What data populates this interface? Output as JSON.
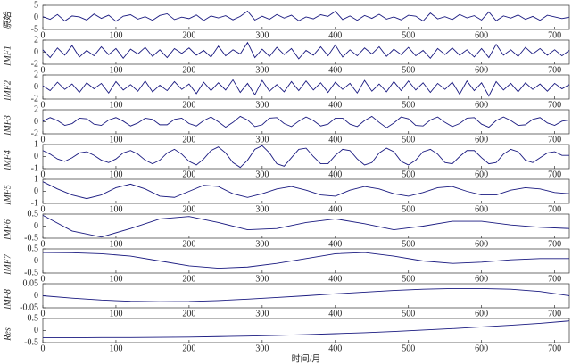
{
  "chart_data": [
    {
      "type": "line",
      "ylabel": "原始",
      "color": "#1a1a80",
      "xlim": [
        0,
        720
      ],
      "xticks": [
        0,
        100,
        200,
        300,
        400,
        500,
        600,
        700
      ],
      "ylim": [
        -5,
        5
      ],
      "yticks": [
        -5,
        0,
        5
      ],
      "x": [
        0,
        10,
        20,
        30,
        40,
        50,
        60,
        70,
        80,
        90,
        100,
        110,
        120,
        130,
        140,
        150,
        160,
        170,
        180,
        190,
        200,
        210,
        220,
        230,
        240,
        250,
        260,
        270,
        280,
        290,
        300,
        310,
        320,
        330,
        340,
        350,
        360,
        370,
        380,
        390,
        400,
        410,
        420,
        430,
        440,
        450,
        460,
        470,
        480,
        490,
        500,
        510,
        520,
        530,
        540,
        550,
        560,
        570,
        580,
        590,
        600,
        610,
        620,
        630,
        640,
        650,
        660,
        670,
        680,
        690,
        700,
        710,
        720
      ],
      "values": [
        0.3,
        -0.8,
        1.2,
        -1.5,
        0.6,
        0.2,
        -1.1,
        1.4,
        -0.4,
        0.9,
        -1.6,
        0.5,
        1.1,
        -0.7,
        0.3,
        -1.2,
        0.8,
        1.5,
        -0.9,
        0.1,
        -0.5,
        1.0,
        -1.3,
        0.6,
        -0.2,
        0.7,
        -1.0,
        0.4,
        2.6,
        -1.1,
        0.5,
        -0.8,
        1.2,
        -0.3,
        0.9,
        -1.4,
        0.2,
        -0.6,
        1.1,
        0.4,
        2.5,
        -0.9,
        0.6,
        -1.2,
        0.8,
        -0.4,
        1.3,
        -0.7,
        0.2,
        -1.0,
        0.9,
        0.5,
        -1.5,
        1.8,
        -0.6,
        0.3,
        -0.9,
        1.2,
        -0.2,
        0.7,
        -1.1,
        2.3,
        -1.4,
        0.6,
        -0.3,
        1.0,
        -0.8,
        0.4,
        -1.2,
        0.9,
        0.2,
        -0.5,
        0.1
      ]
    },
    {
      "type": "line",
      "ylabel": "IMF1",
      "color": "#1a1a80",
      "xlim": [
        0,
        720
      ],
      "xticks": [
        0,
        100,
        200,
        300,
        400,
        500,
        600,
        700
      ],
      "ylim": [
        -2,
        2
      ],
      "yticks": [
        -2,
        0,
        2
      ],
      "x": [
        0,
        10,
        20,
        30,
        40,
        50,
        60,
        70,
        80,
        90,
        100,
        110,
        120,
        130,
        140,
        150,
        160,
        170,
        180,
        190,
        200,
        210,
        220,
        230,
        240,
        250,
        260,
        270,
        280,
        290,
        300,
        310,
        320,
        330,
        340,
        350,
        360,
        370,
        380,
        390,
        400,
        410,
        420,
        430,
        440,
        450,
        460,
        470,
        480,
        490,
        500,
        510,
        520,
        530,
        540,
        550,
        560,
        570,
        580,
        590,
        600,
        610,
        620,
        630,
        640,
        650,
        660,
        670,
        680,
        690,
        700,
        710,
        720
      ],
      "values": [
        0.4,
        -0.9,
        0.7,
        -0.5,
        1.1,
        -0.8,
        0.3,
        -0.6,
        0.9,
        -0.4,
        0.6,
        -1.0,
        0.5,
        -0.3,
        0.8,
        -0.7,
        0.4,
        -0.9,
        0.6,
        -0.2,
        0.7,
        -0.5,
        0.3,
        -0.8,
        1.0,
        -0.6,
        0.4,
        -0.3,
        1.6,
        -0.9,
        0.5,
        -0.7,
        0.8,
        -0.4,
        0.6,
        -1.1,
        0.3,
        -0.5,
        0.9,
        -0.6,
        1.2,
        -0.8,
        0.4,
        -0.6,
        0.7,
        -0.3,
        0.9,
        -0.7,
        0.5,
        -0.4,
        0.8,
        -0.6,
        0.3,
        -1.0,
        0.6,
        -0.4,
        0.7,
        -0.5,
        0.4,
        -0.8,
        0.6,
        -0.9,
        1.3,
        -0.5,
        0.4,
        -0.7,
        0.8,
        -0.3,
        0.6,
        -0.5,
        0.4,
        -0.6,
        0.3
      ]
    },
    {
      "type": "line",
      "ylabel": "IMF2",
      "color": "#1a1a80",
      "xlim": [
        0,
        720
      ],
      "xticks": [
        0,
        100,
        200,
        300,
        400,
        500,
        600,
        700
      ],
      "ylim": [
        -2,
        2
      ],
      "yticks": [
        -2,
        0,
        2
      ],
      "x": [
        0,
        10,
        20,
        30,
        40,
        50,
        60,
        70,
        80,
        90,
        100,
        110,
        120,
        130,
        140,
        150,
        160,
        170,
        180,
        190,
        200,
        210,
        220,
        230,
        240,
        250,
        260,
        270,
        280,
        290,
        300,
        310,
        320,
        330,
        340,
        350,
        360,
        370,
        380,
        390,
        400,
        410,
        420,
        430,
        440,
        450,
        460,
        470,
        480,
        490,
        500,
        510,
        520,
        530,
        540,
        550,
        560,
        570,
        580,
        590,
        600,
        610,
        620,
        630,
        640,
        650,
        660,
        670,
        680,
        690,
        700,
        710,
        720
      ],
      "values": [
        0.2,
        -0.6,
        0.8,
        -0.4,
        0.5,
        -0.9,
        0.7,
        -0.3,
        0.6,
        -1.0,
        0.9,
        -0.5,
        0.4,
        -0.7,
        1.0,
        -0.8,
        0.3,
        -0.6,
        0.9,
        -0.4,
        0.5,
        -1.1,
        0.8,
        -0.6,
        0.7,
        -0.5,
        1.2,
        -0.9,
        0.6,
        -1.3,
        1.1,
        -0.7,
        0.4,
        -0.8,
        0.9,
        -0.6,
        1.0,
        -0.5,
        0.7,
        -0.9,
        0.8,
        -0.4,
        0.6,
        -1.0,
        1.1,
        -0.7,
        0.5,
        -0.8,
        0.9,
        -0.6,
        1.0,
        -0.5,
        0.7,
        -0.9,
        0.6,
        -0.4,
        0.8,
        -1.2,
        1.0,
        -0.6,
        0.7,
        -1.5,
        0.9,
        -0.5,
        0.6,
        -0.8,
        0.7,
        -0.4,
        0.5,
        -0.7,
        0.6,
        -0.3,
        0.4
      ]
    },
    {
      "type": "line",
      "ylabel": "IMF3",
      "color": "#1a1a80",
      "xlim": [
        0,
        720
      ],
      "xticks": [
        0,
        100,
        200,
        300,
        400,
        500,
        600,
        700
      ],
      "ylim": [
        -2,
        2
      ],
      "yticks": [
        -2,
        0,
        2
      ],
      "x": [
        0,
        10,
        20,
        30,
        40,
        50,
        60,
        70,
        80,
        90,
        100,
        110,
        120,
        130,
        140,
        150,
        160,
        170,
        180,
        190,
        200,
        210,
        220,
        230,
        240,
        250,
        260,
        270,
        280,
        290,
        300,
        310,
        320,
        330,
        340,
        350,
        360,
        370,
        380,
        390,
        400,
        410,
        420,
        430,
        440,
        450,
        460,
        470,
        480,
        490,
        500,
        510,
        520,
        530,
        540,
        550,
        560,
        570,
        580,
        590,
        600,
        610,
        620,
        630,
        640,
        650,
        660,
        670,
        680,
        690,
        700,
        710,
        720
      ],
      "values": [
        0.1,
        0.7,
        0.2,
        -0.6,
        -0.3,
        0.6,
        0.5,
        -0.4,
        -0.6,
        0.3,
        0.7,
        0.1,
        -0.7,
        -0.2,
        0.6,
        0.4,
        -0.5,
        -0.5,
        0.4,
        0.6,
        -0.3,
        -0.7,
        0.2,
        0.8,
        0.0,
        -0.9,
        -0.1,
        0.9,
        0.3,
        -0.8,
        -0.5,
        0.6,
        0.7,
        -0.3,
        -0.8,
        0.1,
        0.8,
        0.2,
        -0.7,
        -0.4,
        0.6,
        0.6,
        -0.4,
        -0.8,
        0.2,
        0.9,
        -0.1,
        -1.0,
        -0.2,
        0.8,
        0.5,
        -0.6,
        -0.7,
        0.3,
        0.8,
        -0.1,
        -0.8,
        -0.3,
        0.6,
        0.7,
        -0.4,
        -0.9,
        0.2,
        0.8,
        0.2,
        -0.6,
        -0.5,
        0.4,
        0.7,
        -0.2,
        -0.6,
        0.1,
        0.3
      ]
    },
    {
      "type": "line",
      "ylabel": "IMF4",
      "color": "#1a1a80",
      "xlim": [
        0,
        720
      ],
      "xticks": [
        0,
        100,
        200,
        300,
        400,
        500,
        600,
        700
      ],
      "ylim": [
        -1,
        1
      ],
      "yticks": [
        -1,
        0,
        1
      ],
      "x": [
        0,
        10,
        20,
        30,
        40,
        50,
        60,
        70,
        80,
        90,
        100,
        110,
        120,
        130,
        140,
        150,
        160,
        170,
        180,
        190,
        200,
        210,
        220,
        230,
        240,
        250,
        260,
        270,
        280,
        290,
        300,
        310,
        320,
        330,
        340,
        350,
        360,
        370,
        380,
        390,
        400,
        410,
        420,
        430,
        440,
        450,
        460,
        470,
        480,
        490,
        500,
        510,
        520,
        530,
        540,
        550,
        560,
        570,
        580,
        590,
        600,
        610,
        620,
        630,
        640,
        650,
        660,
        670,
        680,
        690,
        700,
        710,
        720
      ],
      "values": [
        0.5,
        0.2,
        -0.2,
        -0.4,
        -0.1,
        0.3,
        0.4,
        0.1,
        -0.3,
        -0.5,
        -0.2,
        0.3,
        0.5,
        0.2,
        -0.3,
        -0.6,
        -0.3,
        0.3,
        0.6,
        0.2,
        -0.4,
        -0.7,
        -0.2,
        0.5,
        0.8,
        0.3,
        -0.5,
        -0.9,
        -0.3,
        0.6,
        0.9,
        0.3,
        -0.6,
        -0.8,
        -0.1,
        0.6,
        0.7,
        0.0,
        -0.6,
        -0.6,
        0.1,
        0.6,
        0.5,
        -0.2,
        -0.7,
        -0.5,
        0.3,
        0.7,
        0.4,
        -0.4,
        -0.7,
        -0.3,
        0.4,
        0.6,
        0.2,
        -0.5,
        -0.6,
        0.0,
        0.5,
        0.5,
        -0.1,
        -0.6,
        -0.5,
        0.2,
        0.6,
        0.4,
        -0.3,
        -0.5,
        -0.1,
        0.3,
        0.4,
        0.1,
        0.1
      ]
    },
    {
      "type": "line",
      "ylabel": "IMF5",
      "color": "#1a1a80",
      "xlim": [
        0,
        720
      ],
      "xticks": [
        0,
        100,
        200,
        300,
        400,
        500,
        600,
        700
      ],
      "ylim": [
        -1,
        1
      ],
      "yticks": [
        -1,
        0,
        1
      ],
      "x": [
        0,
        20,
        40,
        60,
        80,
        100,
        120,
        140,
        160,
        180,
        200,
        220,
        240,
        260,
        280,
        300,
        320,
        340,
        360,
        380,
        400,
        420,
        440,
        460,
        480,
        500,
        520,
        540,
        560,
        580,
        600,
        620,
        640,
        660,
        680,
        700,
        720
      ],
      "values": [
        0.8,
        0.2,
        -0.3,
        -0.6,
        -0.3,
        0.3,
        0.6,
        0.2,
        -0.4,
        -0.5,
        0.0,
        0.5,
        0.4,
        -0.2,
        -0.5,
        -0.2,
        0.2,
        0.4,
        0.1,
        -0.3,
        -0.4,
        0.1,
        0.4,
        0.2,
        -0.2,
        -0.4,
        -0.1,
        0.3,
        0.4,
        0.0,
        -0.3,
        -0.3,
        0.1,
        0.3,
        0.2,
        -0.1,
        -0.2
      ]
    },
    {
      "type": "line",
      "ylabel": "IMF6",
      "color": "#1a1a80",
      "xlim": [
        0,
        720
      ],
      "xticks": [
        0,
        100,
        200,
        300,
        400,
        500,
        600,
        700
      ],
      "ylim": [
        -0.5,
        0.5
      ],
      "yticks": [
        -0.5,
        0,
        0.5
      ],
      "x": [
        0,
        40,
        80,
        120,
        160,
        200,
        240,
        280,
        320,
        360,
        400,
        440,
        480,
        520,
        560,
        600,
        640,
        680,
        720
      ],
      "values": [
        0.45,
        -0.2,
        -0.45,
        -0.1,
        0.3,
        0.4,
        0.15,
        -0.15,
        -0.1,
        0.15,
        0.3,
        0.1,
        -0.15,
        0.0,
        0.2,
        0.2,
        0.05,
        -0.05,
        -0.1
      ]
    },
    {
      "type": "line",
      "ylabel": "IMF7",
      "color": "#1a1a80",
      "xlim": [
        0,
        720
      ],
      "xticks": [
        0,
        100,
        200,
        300,
        400,
        500,
        600,
        700
      ],
      "ylim": [
        -0.5,
        0.5
      ],
      "yticks": [
        -0.5,
        0,
        0.5
      ],
      "x": [
        0,
        40,
        80,
        120,
        160,
        200,
        240,
        280,
        320,
        360,
        400,
        440,
        480,
        520,
        560,
        600,
        640,
        680,
        720
      ],
      "values": [
        0.35,
        0.34,
        0.3,
        0.2,
        0.0,
        -0.2,
        -0.3,
        -0.25,
        -0.1,
        0.1,
        0.3,
        0.35,
        0.2,
        0.0,
        -0.1,
        -0.05,
        0.05,
        0.1,
        0.1
      ]
    },
    {
      "type": "line",
      "ylabel": "IMF8",
      "color": "#1a1a80",
      "xlim": [
        0,
        720
      ],
      "xticks": [
        0,
        100,
        200,
        300,
        400,
        500,
        600,
        700
      ],
      "ylim": [
        -0.05,
        0.05
      ],
      "yticks": [
        -0.05,
        0,
        0.05
      ],
      "x": [
        0,
        40,
        80,
        120,
        160,
        200,
        240,
        280,
        320,
        360,
        400,
        440,
        480,
        520,
        560,
        600,
        640,
        680,
        720
      ],
      "values": [
        0.0,
        -0.01,
        -0.018,
        -0.023,
        -0.025,
        -0.024,
        -0.02,
        -0.014,
        -0.007,
        0.0,
        0.008,
        0.015,
        0.022,
        0.027,
        0.03,
        0.03,
        0.027,
        0.018,
        0.0
      ]
    },
    {
      "type": "line",
      "ylabel": "Res",
      "xlabel": "时间/月",
      "color": "#1a1a80",
      "xlim": [
        0,
        720
      ],
      "xticks": [
        0,
        100,
        200,
        300,
        400,
        500,
        600,
        700
      ],
      "ylim": [
        -0.5,
        0.5
      ],
      "yticks": [
        -0.5,
        0,
        0.5
      ],
      "x": [
        0,
        40,
        80,
        120,
        160,
        200,
        240,
        280,
        320,
        360,
        400,
        440,
        480,
        520,
        560,
        600,
        640,
        680,
        720
      ],
      "values": [
        -0.3,
        -0.3,
        -0.29,
        -0.29,
        -0.28,
        -0.27,
        -0.25,
        -0.23,
        -0.2,
        -0.17,
        -0.13,
        -0.09,
        -0.04,
        0.02,
        0.08,
        0.15,
        0.22,
        0.3,
        0.4
      ]
    }
  ]
}
